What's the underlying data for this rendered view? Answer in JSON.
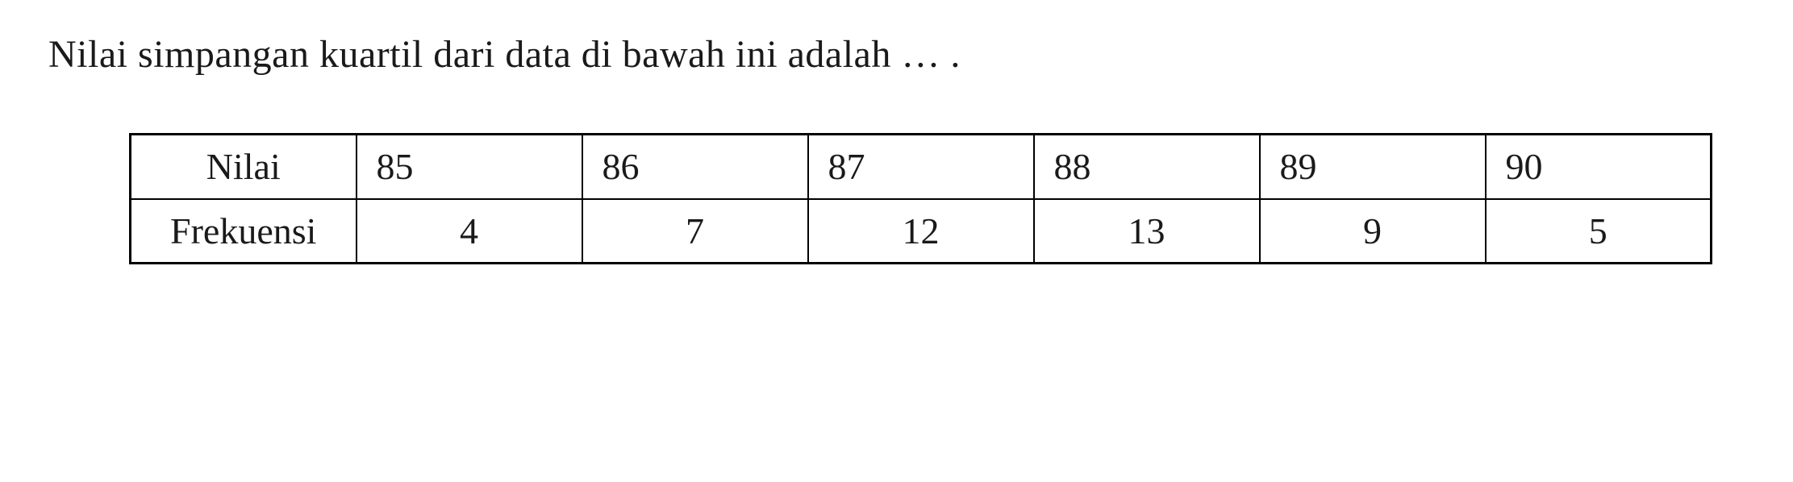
{
  "question": {
    "text": "Nilai simpangan kuartil  dari data di bawah ini adalah … ."
  },
  "table": {
    "type": "table",
    "rows": [
      {
        "header": "Nilai",
        "values": [
          "85",
          "86",
          "87",
          "88",
          "89",
          "90"
        ]
      },
      {
        "header": "Frekuensi",
        "values": [
          "4",
          "7",
          "12",
          "13",
          "9",
          "5"
        ]
      }
    ],
    "border_color": "#000000",
    "background_color": "#ffffff",
    "text_color": "#1a1a1a",
    "font_family": "Times New Roman",
    "header_fontsize": 46,
    "cell_fontsize": 46,
    "column_count": 7,
    "row_count": 2
  }
}
